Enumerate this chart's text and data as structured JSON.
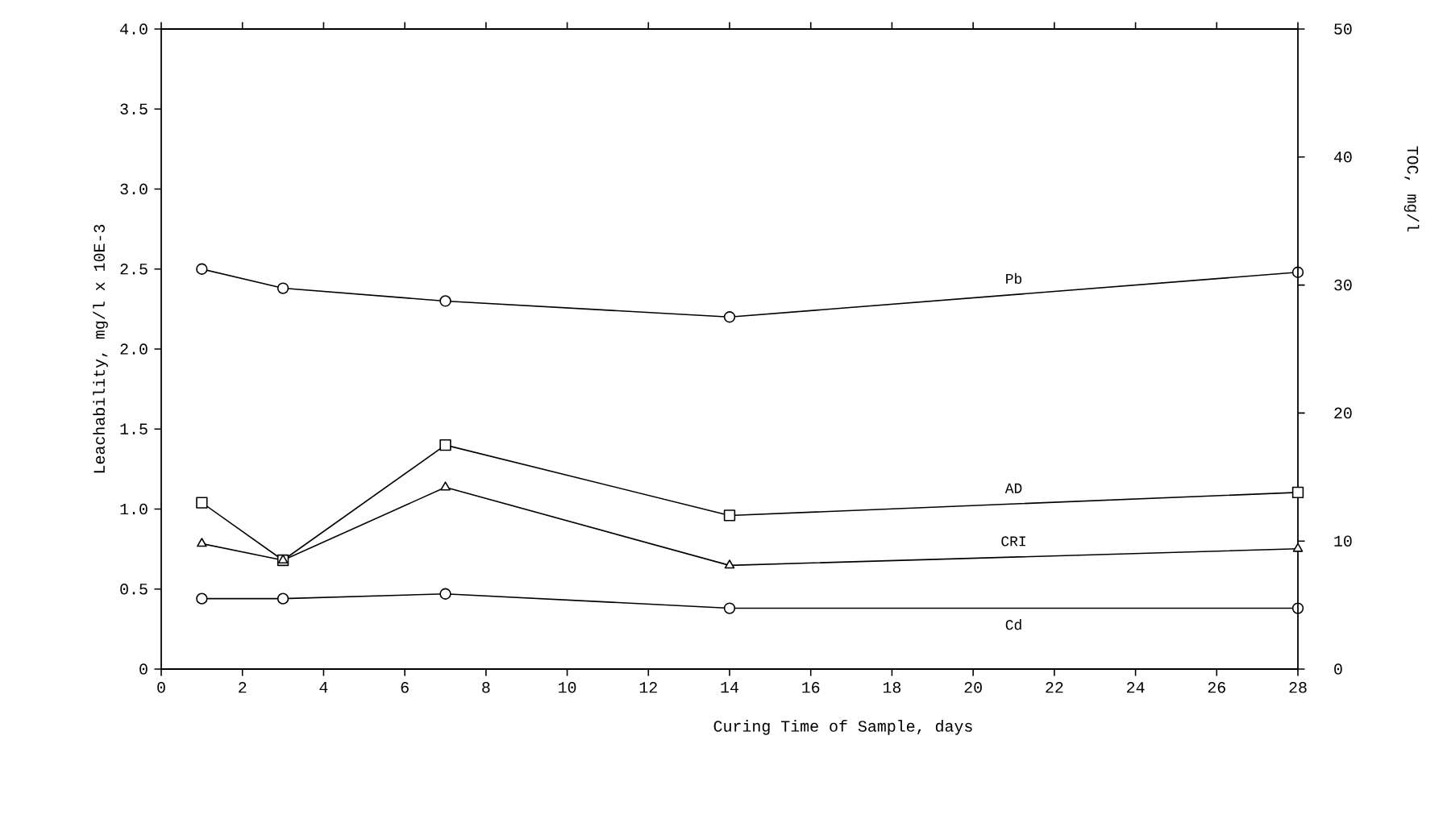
{
  "chart_data": {
    "type": "line",
    "xlabel": "Curing Time of Sample, days",
    "ylabel": "Leachability, mg/l x 10E-3",
    "y2label": "TOC, mg/l",
    "xlim": [
      0,
      28
    ],
    "xticks": [
      0,
      2,
      4,
      6,
      8,
      10,
      12,
      14,
      16,
      18,
      20,
      22,
      24,
      26,
      28
    ],
    "ylim": [
      0,
      4
    ],
    "yticks": [
      0,
      {
        "value": 0.5,
        "label": "0.5"
      },
      {
        "value": 1,
        "label": "1.0"
      },
      {
        "value": 1.5,
        "label": "1.5"
      },
      {
        "value": 2,
        "label": "2.0"
      },
      {
        "value": 2.5,
        "label": "2.5"
      },
      {
        "value": 3,
        "label": "3.0"
      },
      {
        "value": 3.5,
        "label": "3.5"
      },
      {
        "value": 4,
        "label": "4.0"
      }
    ],
    "y2lim": [
      0,
      50
    ],
    "y2ticks": [
      0,
      10,
      20,
      30,
      40,
      50
    ],
    "x": [
      1,
      3,
      7,
      14,
      28
    ],
    "line_style": "solid",
    "series": [
      {
        "name": "Pb",
        "color": "#000000",
        "marker": "circle",
        "values": [
          2.5,
          2.38,
          2.3,
          2.2,
          2.48
        ]
      },
      {
        "name": "AD",
        "color": "#000000",
        "marker": "square",
        "axis": "y2",
        "values": [
          13,
          8.5,
          17.5,
          12,
          13.8
        ]
      },
      {
        "name": "CRI",
        "color": "#000000",
        "marker": "triangle",
        "axis": "y2",
        "values": [
          9.8,
          8.5,
          14.2,
          8.1,
          9.4
        ]
      },
      {
        "name": "Cd",
        "color": "#000000",
        "marker": "circle",
        "values": [
          0.44,
          0.44,
          0.47,
          0.38,
          0.38
        ]
      }
    ]
  }
}
